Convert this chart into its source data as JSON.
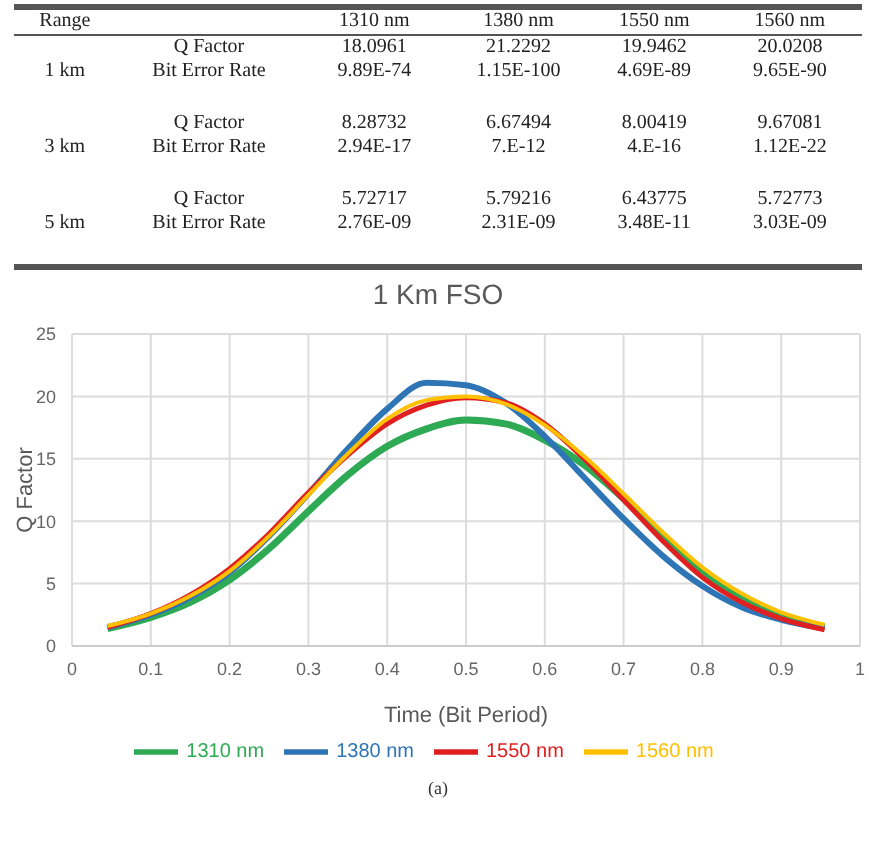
{
  "chart_data": [
    {
      "type": "other",
      "categories": [
        "Range",
        null,
        "1310 nm",
        "1380 nm",
        "1550 nm",
        "1560 nm"
      ],
      "cell_labels": [
        [
          null,
          "Q Factor",
          "18.0961",
          "21.2292",
          "19.9462",
          "20.0208"
        ],
        [
          "1 km",
          "Bit Error Rate",
          "9.89E-74",
          "1.15E-100",
          "4.69E-89",
          "9.65E-90"
        ],
        [
          null,
          "Q Factor",
          "8.28732",
          "6.67494",
          "8.00419",
          "9.67081"
        ],
        [
          "3 km",
          "Bit Error Rate",
          "2.94E-17",
          "7.E-12",
          "4.E-16",
          "1.12E-22"
        ],
        [
          null,
          "Q Factor",
          "5.72717",
          "5.79216",
          "6.43775",
          "5.72773"
        ],
        [
          "5 km",
          "Bit Error Rate",
          "2.76E-09",
          "2.31E-09",
          "3.48E-11",
          "3.03E-09"
        ]
      ]
    },
    {
      "type": "line",
      "title": "1 Km FSO",
      "xlabel": "Time (Bit Period)",
      "ylabel": "Q Factor",
      "x": [
        0.045,
        0.1,
        0.15,
        0.2,
        0.25,
        0.3,
        0.35,
        0.4,
        0.45,
        0.5,
        0.55,
        0.6,
        0.65,
        0.7,
        0.75,
        0.8,
        0.85,
        0.9,
        0.955
      ],
      "series": [
        {
          "name": "1310 nm",
          "color": "#2eaa55",
          "values": [
            1.4,
            2.3,
            3.5,
            5.3,
            7.8,
            10.8,
            13.7,
            16.0,
            17.4,
            18.1,
            17.8,
            16.5,
            14.5,
            11.8,
            8.8,
            6.0,
            3.9,
            2.5,
            1.5
          ]
        },
        {
          "name": "1380 nm",
          "color": "#2e75b6",
          "values": [
            1.5,
            2.5,
            3.9,
            5.9,
            8.8,
            12.2,
            15.8,
            19.0,
            21.1,
            20.9,
            19.5,
            16.8,
            13.5,
            10.2,
            7.2,
            4.8,
            3.1,
            2.1,
            1.4
          ]
        },
        {
          "name": "1550 nm",
          "color": "#e02020",
          "values": [
            1.5,
            2.6,
            4.1,
            6.2,
            9.0,
            12.3,
            15.3,
            17.8,
            19.3,
            19.9,
            19.5,
            17.8,
            15.0,
            11.7,
            8.4,
            5.5,
            3.5,
            2.2,
            1.3
          ]
        },
        {
          "name": "1560 nm",
          "color": "#ffc000",
          "values": [
            1.6,
            2.6,
            4.0,
            6.0,
            8.8,
            12.1,
            15.4,
            18.2,
            19.7,
            20.0,
            19.4,
            17.7,
            15.2,
            12.2,
            9.1,
            6.3,
            4.2,
            2.7,
            1.7
          ]
        }
      ],
      "xlim": [
        0,
        1
      ],
      "xticks": [
        0,
        0.1,
        0.2,
        0.3,
        0.4,
        0.5,
        0.6,
        0.7,
        0.8,
        0.9,
        1
      ],
      "ylim": [
        0,
        25
      ],
      "yticks": [
        0,
        5,
        10,
        15,
        20,
        25
      ],
      "grid": true,
      "legend": "bottom",
      "annotations": [
        "(a)"
      ]
    }
  ]
}
